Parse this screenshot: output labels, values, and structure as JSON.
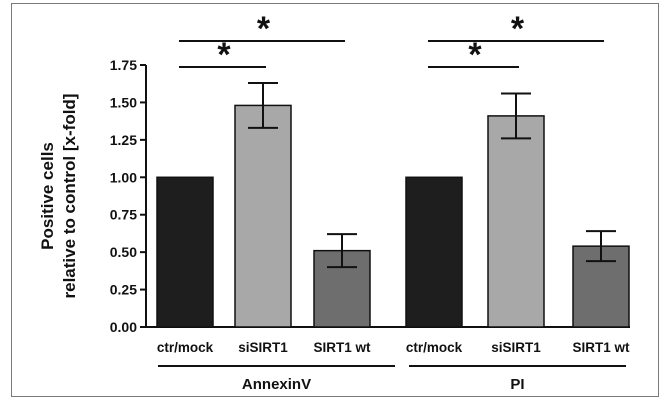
{
  "chart_data": {
    "type": "bar",
    "ylabel_line1": "Positive cells",
    "ylabel_line2": "relative to control [x-fold]",
    "ylim": [
      0,
      1.75
    ],
    "yticks": [
      "0.00",
      "0.25",
      "0.50",
      "0.75",
      "1.00",
      "1.25",
      "1.50",
      "1.75"
    ],
    "groups": [
      {
        "name": "AnnexinV",
        "categories": [
          "ctr/mock",
          "siSIRT1",
          "SIRT1 wt"
        ],
        "values": [
          1.0,
          1.48,
          0.51
        ],
        "errors": [
          0.0,
          0.15,
          0.11
        ],
        "colors": [
          "#1e1e1e",
          "#a8a8a8",
          "#6e6e6e"
        ],
        "significance": [
          {
            "from": 0,
            "to": 1,
            "label": "*"
          },
          {
            "from": 0,
            "to": 2,
            "label": "*"
          }
        ]
      },
      {
        "name": "PI",
        "categories": [
          "ctr/mock",
          "siSIRT1",
          "SIRT1 wt"
        ],
        "values": [
          1.0,
          1.41,
          0.54
        ],
        "errors": [
          0.0,
          0.15,
          0.1
        ],
        "colors": [
          "#1e1e1e",
          "#a8a8a8",
          "#6e6e6e"
        ],
        "significance": [
          {
            "from": 0,
            "to": 1,
            "label": "*"
          },
          {
            "from": 0,
            "to": 2,
            "label": "*"
          }
        ]
      }
    ]
  }
}
